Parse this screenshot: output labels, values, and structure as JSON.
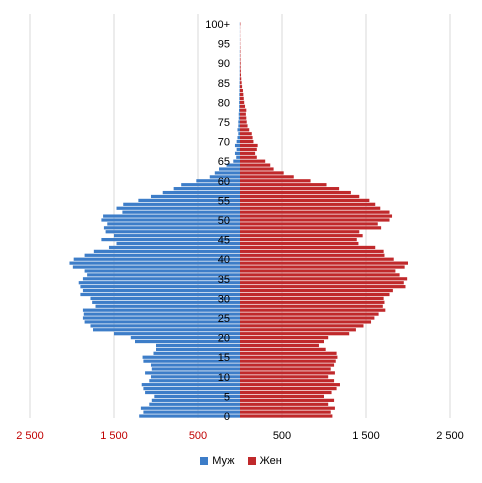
{
  "chart_data": {
    "type": "bar",
    "orientation": "horizontal-population-pyramid",
    "title": "",
    "xlabel": "",
    "ylabel": "",
    "xlim": [
      -2500,
      2500
    ],
    "x_ticks": [
      {
        "value": -2500,
        "label": "2 500"
      },
      {
        "value": -1500,
        "label": "1 500"
      },
      {
        "value": -500,
        "label": "500"
      },
      {
        "value": 500,
        "label": "500"
      },
      {
        "value": 1500,
        "label": "1 500"
      },
      {
        "value": 2500,
        "label": "2 500"
      }
    ],
    "y_tick_labels": [
      "0",
      "5",
      "10",
      "15",
      "20",
      "25",
      "30",
      "35",
      "40",
      "45",
      "50",
      "55",
      "60",
      "65",
      "70",
      "75",
      "80",
      "85",
      "90",
      "95",
      "100+"
    ],
    "grid": true,
    "legend_position": "bottom",
    "categories_note": "single-year ages 0..100+",
    "series": [
      {
        "name": "Муж",
        "color": "#3d7dc8",
        "values": [
          1200,
          1150,
          1180,
          1080,
          1050,
          1020,
          1130,
          1150,
          1170,
          1080,
          1060,
          1130,
          1050,
          1060,
          1150,
          1160,
          1030,
          1000,
          1000,
          1250,
          1300,
          1500,
          1750,
          1780,
          1850,
          1870,
          1860,
          1870,
          1720,
          1760,
          1780,
          1900,
          1870,
          1900,
          1920,
          1870,
          1820,
          1850,
          1990,
          2030,
          1980,
          1850,
          1740,
          1560,
          1470,
          1650,
          1500,
          1600,
          1620,
          1580,
          1650,
          1630,
          1400,
          1470,
          1390,
          1210,
          1060,
          920,
          790,
          700,
          520,
          360,
          300,
          250,
          160,
          80,
          45,
          60,
          40,
          60,
          40,
          30,
          20,
          30,
          20,
          20,
          15,
          15,
          12,
          10,
          10,
          8,
          8,
          6,
          6,
          5,
          4,
          3,
          3,
          3,
          2,
          2,
          2,
          2,
          1,
          1,
          1,
          1,
          1,
          1,
          2
        ],
        "value_labels": []
      },
      {
        "name": "Жен",
        "color": "#c0292b",
        "values": [
          1100,
          1080,
          1130,
          1050,
          1120,
          1000,
          1090,
          1150,
          1190,
          1120,
          1050,
          1130,
          1080,
          1120,
          1140,
          1160,
          1150,
          1020,
          940,
          1000,
          1050,
          1300,
          1380,
          1470,
          1560,
          1600,
          1650,
          1730,
          1700,
          1720,
          1710,
          1780,
          1820,
          1970,
          1950,
          1990,
          1900,
          1850,
          1960,
          2000,
          1830,
          1720,
          1710,
          1610,
          1410,
          1390,
          1460,
          1420,
          1680,
          1640,
          1780,
          1810,
          1780,
          1670,
          1610,
          1540,
          1420,
          1320,
          1180,
          1030,
          840,
          640,
          520,
          400,
          360,
          300,
          200,
          180,
          200,
          210,
          160,
          150,
          140,
          110,
          90,
          80,
          75,
          70,
          75,
          60,
          50,
          45,
          40,
          35,
          25,
          20,
          15,
          12,
          10,
          8,
          8,
          6,
          5,
          5,
          4,
          3,
          3,
          2,
          2,
          2,
          5
        ]
      }
    ]
  },
  "legend": {
    "male_label": "Муж",
    "female_label": "Жен"
  }
}
